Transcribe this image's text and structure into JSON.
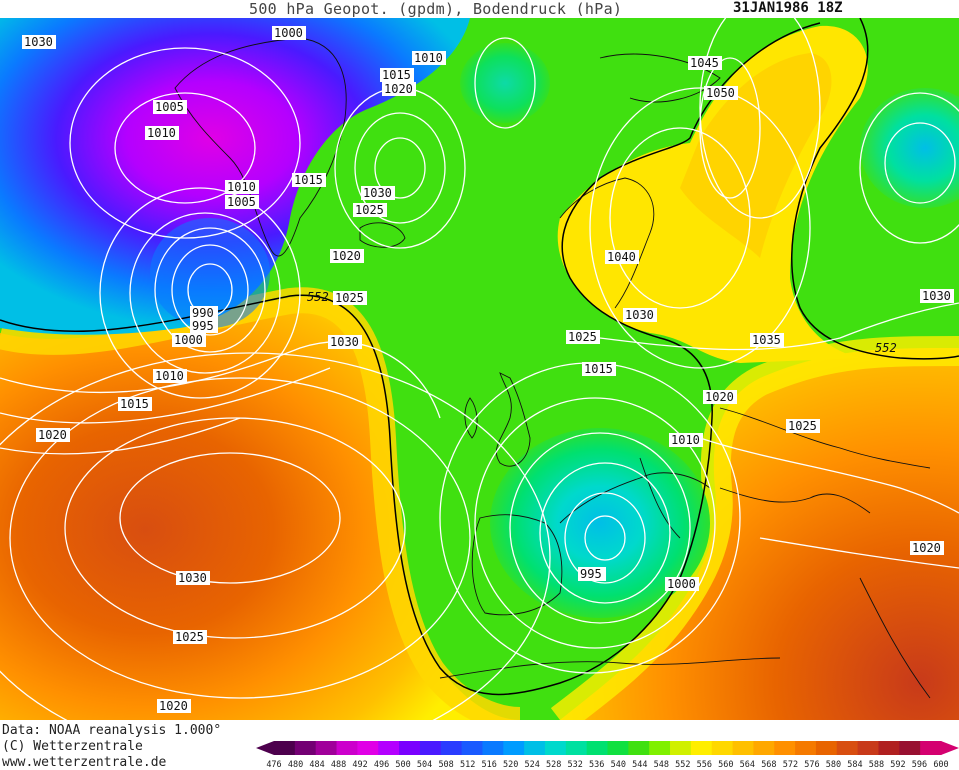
{
  "header": {
    "title": "500 hPa Geopot. (gpdm), Bodendruck (hPa)",
    "date": "31JAN1986 18Z"
  },
  "footer": {
    "credit_data": "Data: NOAA reanalysis 1.000°",
    "credit_copyright": "(C) Wetterzentrale",
    "credit_url": "www.wetterzentrale.de"
  },
  "legend": {
    "levels": [
      "476",
      "480",
      "484",
      "488",
      "492",
      "496",
      "500",
      "504",
      "508",
      "512",
      "516",
      "520",
      "524",
      "528",
      "532",
      "536",
      "540",
      "544",
      "548",
      "552",
      "556",
      "560",
      "564",
      "568",
      "572",
      "576",
      "580",
      "584",
      "588",
      "592",
      "596",
      "600"
    ],
    "colors": [
      "#4d004d",
      "#730073",
      "#a0009a",
      "#cc00cc",
      "#e000e6",
      "#b400ff",
      "#7a00ff",
      "#4a1aff",
      "#2a3cff",
      "#1a5aff",
      "#0a7aff",
      "#009cff",
      "#00bfe6",
      "#00d9cc",
      "#00e0a0",
      "#00e070",
      "#10e040",
      "#40e010",
      "#80f000",
      "#d0f000",
      "#ffee00",
      "#ffd800",
      "#ffc000",
      "#ffa800",
      "#ff9000",
      "#f57a00",
      "#e86400",
      "#d84e10",
      "#c83a1a",
      "#b02020",
      "#981030",
      "#d40070"
    ]
  },
  "map_labels": {
    "pressure": [
      "1030",
      "1000",
      "1010",
      "1015",
      "1020",
      "1045",
      "1050",
      "1005",
      "1010",
      "1010",
      "1005",
      "1015",
      "1030",
      "1025",
      "1040",
      "1020",
      "1025",
      "1030",
      "990",
      "995",
      "1000",
      "1030",
      "1025",
      "1015",
      "1035",
      "1030",
      "1010",
      "1015",
      "1020",
      "1025",
      "1020",
      "1010",
      "1030",
      "995",
      "1000",
      "1020",
      "1025",
      "1020"
    ],
    "geopotential": [
      "552",
      "552"
    ]
  },
  "colors": {
    "contour": "#ffffff",
    "boundary_552": "#000000",
    "coastline": "#000000"
  }
}
